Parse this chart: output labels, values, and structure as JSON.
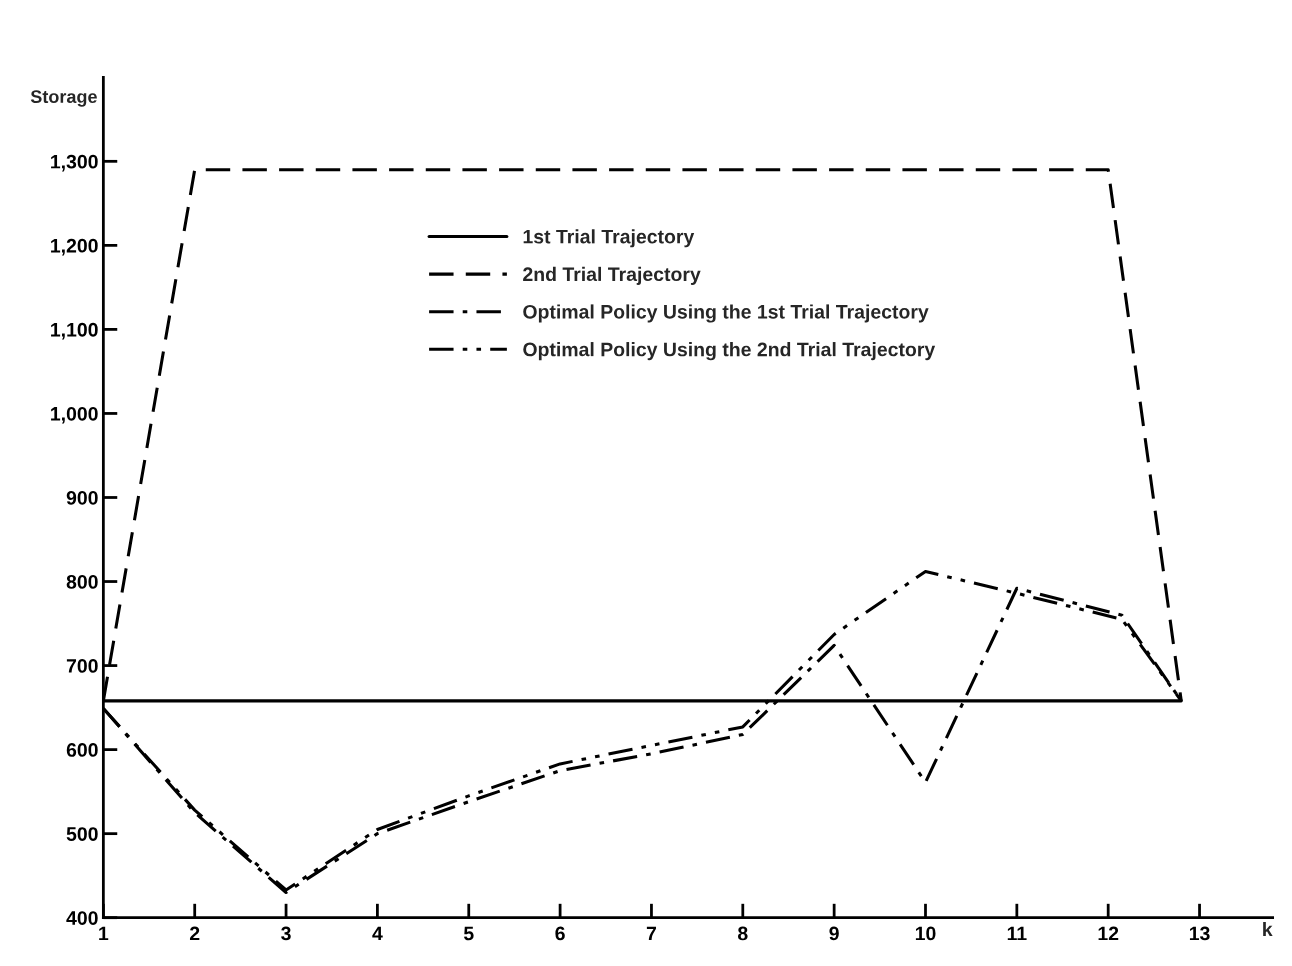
{
  "chart_data": {
    "type": "line",
    "xlabel": "k",
    "ylabel": "Storage",
    "xlim": [
      1,
      13.8
    ],
    "ylim": [
      400,
      1400
    ],
    "xticks": [
      1,
      2,
      3,
      4,
      5,
      6,
      7,
      8,
      9,
      10,
      11,
      12,
      13
    ],
    "yticks": [
      400,
      500,
      600,
      700,
      800,
      900,
      {
        "value": 1000,
        "label": "1,000"
      },
      {
        "value": 1100,
        "label": "1,100"
      },
      {
        "value": 1200,
        "label": "1,200"
      },
      {
        "value": 1300,
        "label": "1,300"
      }
    ],
    "grid": false,
    "legend": "top",
    "marker": "none",
    "series": [
      {
        "name": "1st Trial Trajectory",
        "color": "#000000",
        "line_style": "solid",
        "x": [
          1,
          12.8
        ],
        "values": [
          658,
          658
        ]
      },
      {
        "name": "2nd Trial Trajectory",
        "color": "#000000",
        "line_style": "dashed",
        "x": [
          1,
          2,
          12,
          12.8
        ],
        "values": [
          658,
          1290,
          1290,
          658
        ]
      },
      {
        "name": "Optimal Policy Using the 1st Trial Trajectory",
        "color": "#000000",
        "line_style": "dashdot",
        "x": [
          1,
          2,
          3,
          4,
          5,
          6,
          7,
          8,
          9,
          10,
          11,
          12.15,
          12.8
        ],
        "values": [
          649,
          525,
          430,
          500,
          538,
          575,
          595,
          618,
          724,
          561,
          792,
          760,
          658
        ]
      },
      {
        "name": "Optimal Policy Using the 2nd Trial Trajectory",
        "color": "#000000",
        "line_style": "dashdotdot",
        "x": [
          1,
          2,
          3,
          4,
          5,
          6,
          7,
          8,
          9,
          10,
          11,
          12.15,
          12.8
        ],
        "values": [
          649,
          528,
          433,
          505,
          545,
          583,
          605,
          627,
          737,
          812,
          786,
          755,
          658
        ]
      }
    ]
  }
}
